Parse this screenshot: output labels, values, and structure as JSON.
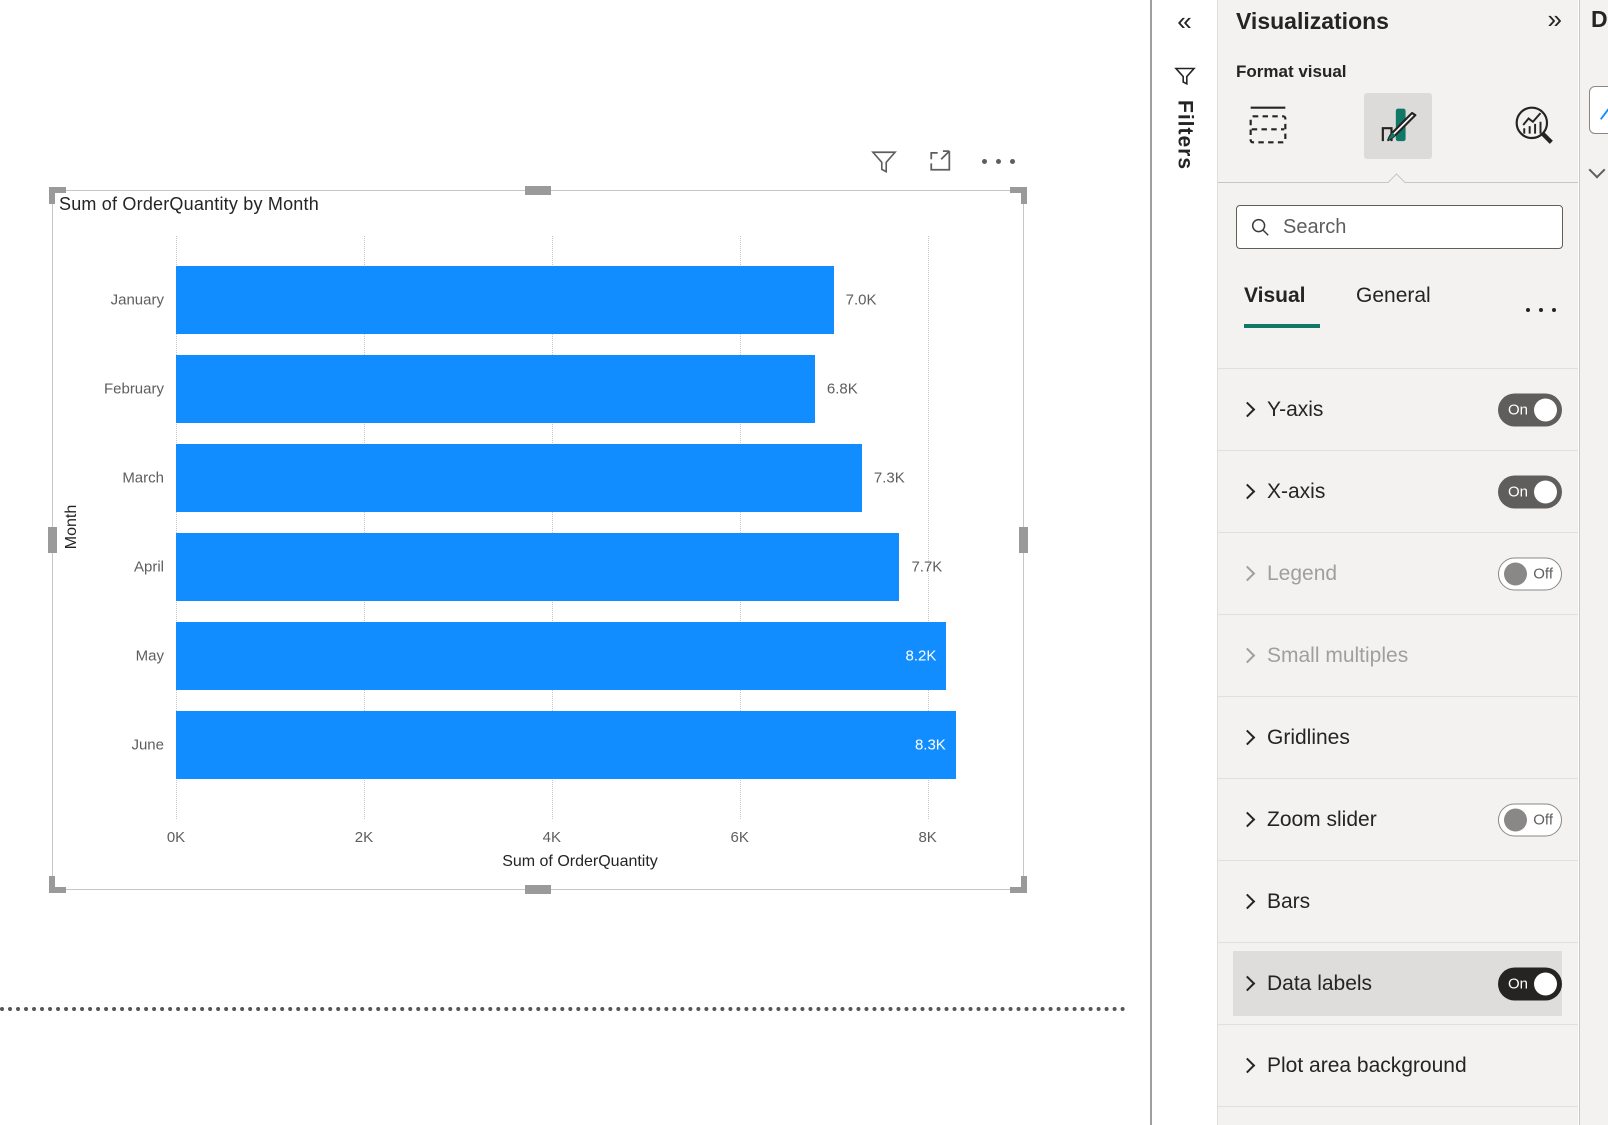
{
  "chart_data": {
    "type": "bar",
    "orientation": "horizontal",
    "title": "Sum of OrderQuantity by Month",
    "categories": [
      "January",
      "February",
      "March",
      "April",
      "May",
      "June"
    ],
    "values": [
      7000,
      6800,
      7300,
      7700,
      8200,
      8300
    ],
    "value_labels": [
      "7.0K",
      "6.8K",
      "7.3K",
      "7.7K",
      "8.2K",
      "8.3K"
    ],
    "label_inside": [
      false,
      false,
      false,
      false,
      true,
      true
    ],
    "xlabel": "Sum of OrderQuantity",
    "ylabel": "Month",
    "x_ticks": [
      "0K",
      "2K",
      "4K",
      "6K",
      "8K"
    ],
    "x_tick_values": [
      0,
      2000,
      4000,
      6000,
      8000
    ],
    "xlim": [
      0,
      8600
    ],
    "bar_color": "#118DFF",
    "grid": "dotted-vertical",
    "legend": "off",
    "data_labels": "on"
  },
  "visual": {
    "toolbar_icons": [
      "filter-funnel-icon",
      "focus-mode-icon",
      "more-options-icon"
    ]
  },
  "filters_rail": {
    "label": "Filters",
    "collapse_icon": "«",
    "funnel_icon": "funnel-icon"
  },
  "viz_pane": {
    "title": "Visualizations",
    "collapse_icon": "»",
    "subtitle": "Format visual",
    "icon_names": [
      "build-visual-icon",
      "format-visual-icon",
      "analytics-icon"
    ],
    "selected_icon": "format-visual-icon",
    "search_placeholder": "Search",
    "tabs": [
      {
        "label": "Visual",
        "active": true
      },
      {
        "label": "General",
        "active": false
      }
    ],
    "toggle_on_label": "On",
    "toggle_off_label": "Off",
    "sections": [
      {
        "label": "Y-axis",
        "toggle": "On",
        "enabled": true,
        "highlighted": false
      },
      {
        "label": "X-axis",
        "toggle": "On",
        "enabled": true,
        "highlighted": false
      },
      {
        "label": "Legend",
        "toggle": "Off",
        "enabled": false,
        "highlighted": false
      },
      {
        "label": "Small multiples",
        "toggle": null,
        "enabled": false,
        "highlighted": false
      },
      {
        "label": "Gridlines",
        "toggle": null,
        "enabled": true,
        "highlighted": false
      },
      {
        "label": "Zoom slider",
        "toggle": "Off",
        "enabled": true,
        "highlighted": false
      },
      {
        "label": "Bars",
        "toggle": null,
        "enabled": true,
        "highlighted": false
      },
      {
        "label": "Data labels",
        "toggle": "On",
        "enabled": true,
        "highlighted": true
      },
      {
        "label": "Plot area background",
        "toggle": null,
        "enabled": true,
        "highlighted": false
      }
    ]
  },
  "data_pane": {
    "title_partial": "D"
  },
  "colors": {
    "bar_blue": "#118DFF",
    "pane_bg": "#F3F2F1",
    "accent_teal": "#117865",
    "text_dark": "#252423",
    "text_gray": "#605E5C",
    "disabled_gray": "#A19F9D",
    "toggle_on": "#605E5C",
    "toggle_on_emphasis": "#252423",
    "row_highlight": "#DEDDDB"
  }
}
